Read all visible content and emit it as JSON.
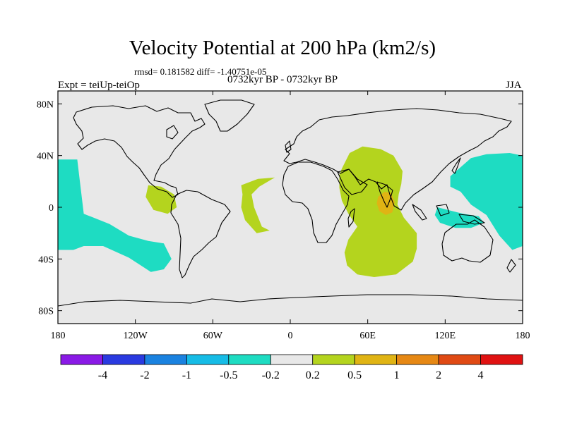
{
  "title": "Velocity Potential at 200 hPa (km2/s)",
  "stats": "rmsd= 0.181582 diff= -1.40751e-05",
  "experiment": "Expt = teiUp-teiOp",
  "period": "0732kyr BP - 0732kyr BP",
  "season": "JJA",
  "map": {
    "lon_range": [
      -180,
      180
    ],
    "lat_range": [
      -90,
      90
    ],
    "background_color": "#e8e8e8",
    "lon_ticks": [
      {
        "value": -180,
        "label": "180"
      },
      {
        "value": -120,
        "label": "120W"
      },
      {
        "value": -60,
        "label": "60W"
      },
      {
        "value": 0,
        "label": "0"
      },
      {
        "value": 60,
        "label": "60E"
      },
      {
        "value": 120,
        "label": "120E"
      },
      {
        "value": 180,
        "label": "180"
      }
    ],
    "lat_ticks": [
      {
        "value": 80,
        "label": "80N"
      },
      {
        "value": 40,
        "label": "40N"
      },
      {
        "value": 0,
        "label": "0"
      },
      {
        "value": -40,
        "label": "40S"
      },
      {
        "value": -80,
        "label": "80S"
      }
    ]
  },
  "colorbar": {
    "colors": [
      "#8a1ae6",
      "#2a3ae0",
      "#1a82e0",
      "#16bce6",
      "#1edcc2",
      "#e8e8e8",
      "#b4d41e",
      "#e0b414",
      "#e68814",
      "#e04a14",
      "#e01212"
    ],
    "labels": [
      "-4",
      "-2",
      "-1",
      "-0.5",
      "-0.2",
      "0.2",
      "0.5",
      "1",
      "2",
      "4"
    ]
  },
  "regions": [
    {
      "name": "east-pacific-negative",
      "level": "-0.5 to -0.2",
      "color": "#1edcc2",
      "points": [
        [
          -180,
          37
        ],
        [
          -165,
          37
        ],
        [
          -163,
          20
        ],
        [
          -160,
          -5
        ],
        [
          -140,
          -13
        ],
        [
          -125,
          -22
        ],
        [
          -110,
          -26
        ],
        [
          -98,
          -28
        ],
        [
          -92,
          -40
        ],
        [
          -98,
          -48
        ],
        [
          -108,
          -50
        ],
        [
          -125,
          -39
        ],
        [
          -145,
          -30
        ],
        [
          -160,
          -30
        ],
        [
          -168,
          -33
        ],
        [
          -180,
          -33
        ]
      ]
    },
    {
      "name": "west-pacific-negative",
      "level": "-0.5 to -0.2",
      "color": "#1edcc2",
      "points": [
        [
          124,
          24
        ],
        [
          140,
          38
        ],
        [
          152,
          41
        ],
        [
          170,
          42
        ],
        [
          180,
          40
        ],
        [
          180,
          -30
        ],
        [
          172,
          -33
        ],
        [
          162,
          -22
        ],
        [
          152,
          -6
        ],
        [
          140,
          2
        ],
        [
          132,
          12
        ],
        [
          124,
          16
        ]
      ]
    },
    {
      "name": "maritime-continent-negative",
      "level": "-0.5 to -0.2",
      "color": "#1edcc2",
      "points": [
        [
          114,
          0
        ],
        [
          122,
          -2
        ],
        [
          134,
          -5
        ],
        [
          146,
          -7
        ],
        [
          150,
          -12
        ],
        [
          140,
          -16
        ],
        [
          128,
          -16
        ],
        [
          116,
          -12
        ],
        [
          112,
          -6
        ]
      ]
    },
    {
      "name": "central-america-positive",
      "level": "0.2 to 0.5",
      "color": "#b4d41e",
      "points": [
        [
          -110,
          17
        ],
        [
          -100,
          16
        ],
        [
          -90,
          10
        ],
        [
          -88,
          0
        ],
        [
          -95,
          -5
        ],
        [
          -106,
          -2
        ],
        [
          -112,
          8
        ]
      ]
    },
    {
      "name": "atlantic-positive",
      "level": "0.2 to 0.5",
      "color": "#b4d41e",
      "points": [
        [
          -38,
          17
        ],
        [
          -25,
          22
        ],
        [
          -12,
          23
        ],
        [
          -24,
          16
        ],
        [
          -30,
          10
        ],
        [
          -28,
          0
        ],
        [
          -22,
          -15
        ],
        [
          -16,
          -18
        ],
        [
          -26,
          -20
        ],
        [
          -35,
          -10
        ],
        [
          -38,
          0
        ],
        [
          -37,
          10
        ]
      ]
    },
    {
      "name": "indian-ocean-positive",
      "level": "0.2 to 0.5",
      "color": "#b4d41e",
      "points": [
        [
          40,
          30
        ],
        [
          46,
          42
        ],
        [
          56,
          47
        ],
        [
          70,
          45
        ],
        [
          80,
          40
        ],
        [
          87,
          28
        ],
        [
          86,
          18
        ],
        [
          84,
          10
        ],
        [
          83,
          2
        ],
        [
          88,
          -8
        ],
        [
          98,
          -20
        ],
        [
          98,
          -32
        ],
        [
          95,
          -42
        ],
        [
          82,
          -52
        ],
        [
          65,
          -54
        ],
        [
          52,
          -52
        ],
        [
          44,
          -45
        ],
        [
          42,
          -35
        ],
        [
          45,
          -25
        ],
        [
          52,
          -15
        ],
        [
          45,
          -5
        ],
        [
          40,
          5
        ],
        [
          38,
          15
        ],
        [
          38,
          25
        ]
      ]
    },
    {
      "name": "arabian-sea-positive-core",
      "level": "0.5 to 1",
      "color": "#e0b414",
      "points": [
        [
          68,
          8
        ],
        [
          73,
          12
        ],
        [
          78,
          11
        ],
        [
          81,
          4
        ],
        [
          79,
          -4
        ],
        [
          74,
          -6
        ],
        [
          69,
          -3
        ],
        [
          67,
          3
        ]
      ]
    }
  ]
}
